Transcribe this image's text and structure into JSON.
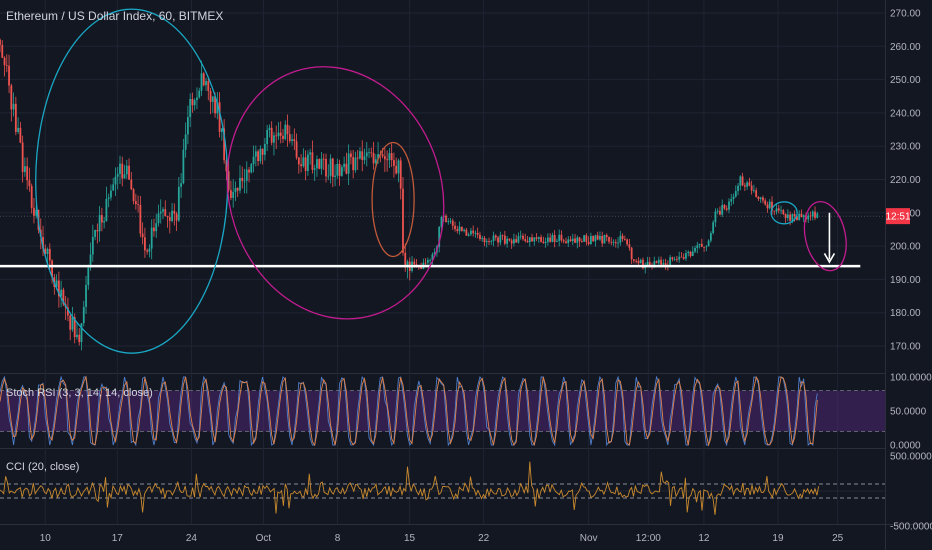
{
  "header": {
    "title": "Ethereum / US Dollar Index, 60, BITMEX"
  },
  "price_badge": {
    "label": "12:51",
    "color": "#f23645"
  },
  "indicators": {
    "stoch": {
      "label": "Stoch RSI (3, 3, 14, 14, close)"
    },
    "cci": {
      "label": "CCI (20, close)"
    }
  },
  "colors": {
    "background": "#131722",
    "grid": "#1f2433",
    "candle_up": "#26a69a",
    "candle_down": "#ef5350",
    "stoch_k": "#4f7ecb",
    "stoch_d": "#e0834a",
    "stoch_band": "#5b2a86",
    "cci_line": "#c98a2e",
    "support_line": "#ffffff",
    "ellipse_cyan": "#1aa7c4",
    "ellipse_magenta": "#c21c8f",
    "ellipse_orange": "#c25a3a"
  },
  "chart_data": [
    {
      "type": "candlestick",
      "title": "Ethereum / US Dollar Index, 60, BITMEX",
      "x_ticks": [
        "10",
        "17",
        "24",
        "Oct",
        "8",
        "15",
        "22",
        "Nov",
        "12:00",
        "12",
        "19",
        "25"
      ],
      "y_ticks": [
        "270.00",
        "260.00",
        "250.00",
        "240.00",
        "230.00",
        "220.00",
        "210.00",
        "200.00",
        "190.00",
        "180.00",
        "170.00"
      ],
      "ylim": [
        164,
        272
      ],
      "price_path": [
        {
          "t": 0,
          "p": 262
        },
        {
          "t": 6,
          "p": 222
        },
        {
          "t": 12,
          "p": 194
        },
        {
          "t": 17,
          "p": 178
        },
        {
          "t": 19,
          "p": 170
        },
        {
          "t": 22,
          "p": 198
        },
        {
          "t": 26,
          "p": 213
        },
        {
          "t": 30,
          "p": 224
        },
        {
          "t": 33,
          "p": 214
        },
        {
          "t": 35,
          "p": 197
        },
        {
          "t": 38,
          "p": 208
        },
        {
          "t": 43,
          "p": 210
        },
        {
          "t": 46,
          "p": 242
        },
        {
          "t": 49,
          "p": 250
        },
        {
          "t": 53,
          "p": 240
        },
        {
          "t": 56,
          "p": 216
        },
        {
          "t": 60,
          "p": 222
        },
        {
          "t": 65,
          "p": 233
        },
        {
          "t": 69,
          "p": 234
        },
        {
          "t": 73,
          "p": 226
        },
        {
          "t": 80,
          "p": 223
        },
        {
          "t": 88,
          "p": 226
        },
        {
          "t": 94,
          "p": 228
        },
        {
          "t": 97,
          "p": 224
        },
        {
          "t": 98,
          "p": 197
        },
        {
          "t": 101,
          "p": 193
        },
        {
          "t": 104,
          "p": 195
        },
        {
          "t": 106,
          "p": 198
        },
        {
          "t": 107,
          "p": 210
        },
        {
          "t": 111,
          "p": 205
        },
        {
          "t": 118,
          "p": 202
        },
        {
          "t": 125,
          "p": 202
        },
        {
          "t": 134,
          "p": 202
        },
        {
          "t": 146,
          "p": 202
        },
        {
          "t": 152,
          "p": 202
        },
        {
          "t": 154,
          "p": 195
        },
        {
          "t": 158,
          "p": 194
        },
        {
          "t": 164,
          "p": 196
        },
        {
          "t": 169,
          "p": 199
        },
        {
          "t": 172,
          "p": 201
        },
        {
          "t": 174,
          "p": 210
        },
        {
          "t": 177,
          "p": 212
        },
        {
          "t": 180,
          "p": 220
        },
        {
          "t": 183,
          "p": 216
        },
        {
          "t": 187,
          "p": 212
        },
        {
          "t": 190,
          "p": 210
        },
        {
          "t": 193,
          "p": 208
        },
        {
          "t": 196,
          "p": 209
        },
        {
          "t": 199,
          "p": 209
        }
      ],
      "last_price_label": "12:51",
      "support_level": 194,
      "annotations": [
        "cyan ellipse",
        "magenta ellipse",
        "orange ellipse",
        "down arrow"
      ]
    },
    {
      "type": "line",
      "title": "Stoch RSI (3, 3, 14, 14, close)",
      "y_ticks": [
        "100.0000",
        "50.0000",
        "0.0000"
      ],
      "ylim": [
        0,
        100
      ],
      "bands": [
        20,
        80
      ]
    },
    {
      "type": "line",
      "title": "CCI (20, close)",
      "y_ticks": [
        "500.0000",
        "-500.0000"
      ],
      "ylim": [
        -500,
        500
      ],
      "bands": [
        -100,
        100
      ]
    }
  ]
}
